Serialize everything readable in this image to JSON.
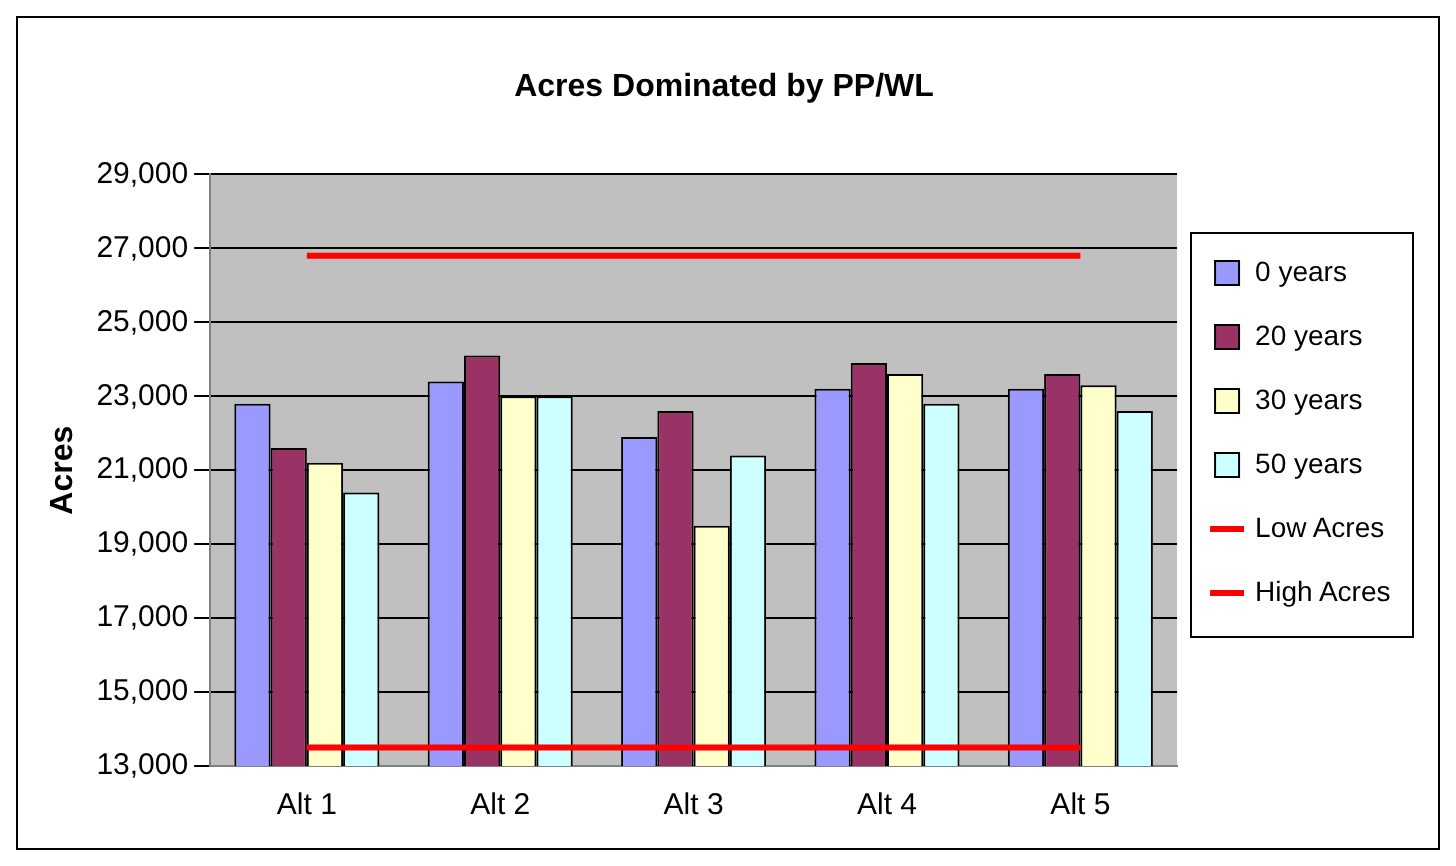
{
  "chart_data": {
    "type": "bar",
    "title": "Acres Dominated by PP/WL",
    "ylabel": "Acres",
    "categories": [
      "Alt 1",
      "Alt 2",
      "Alt 3",
      "Alt 4",
      "Alt 5"
    ],
    "series": [
      {
        "name": "0 years",
        "color": "#9999ff",
        "values": [
          22800,
          23400,
          21900,
          23200,
          23200
        ]
      },
      {
        "name": "20 years",
        "color": "#993366",
        "values": [
          21600,
          24100,
          22600,
          23900,
          23600
        ]
      },
      {
        "name": "30 years",
        "color": "#ffffcc",
        "values": [
          21200,
          23000,
          19500,
          23600,
          23300
        ]
      },
      {
        "name": "50 years",
        "color": "#ccffff",
        "values": [
          20400,
          23000,
          21400,
          22800,
          22600
        ]
      },
      {
        "name": "Low Acres",
        "type": "line",
        "color": "#ff0000",
        "values": [
          13500,
          13500,
          13500,
          13500,
          13500
        ]
      },
      {
        "name": "High Acres",
        "type": "line",
        "color": "#ff0000",
        "values": [
          26800,
          26800,
          26800,
          26800,
          26800
        ]
      }
    ],
    "ylim": [
      13000,
      29000
    ],
    "yticks": [
      {
        "value": 13000,
        "label": "13,000"
      },
      {
        "value": 15000,
        "label": "15,000"
      },
      {
        "value": 17000,
        "label": "17,000"
      },
      {
        "value": 19000,
        "label": "19,000"
      },
      {
        "value": 21000,
        "label": "21,000"
      },
      {
        "value": 23000,
        "label": "23,000"
      },
      {
        "value": 25000,
        "label": "25,000"
      },
      {
        "value": 27000,
        "label": "27,000"
      },
      {
        "value": 29000,
        "label": "29,000"
      }
    ],
    "grid": "y",
    "legend": "right",
    "marker": "none"
  }
}
